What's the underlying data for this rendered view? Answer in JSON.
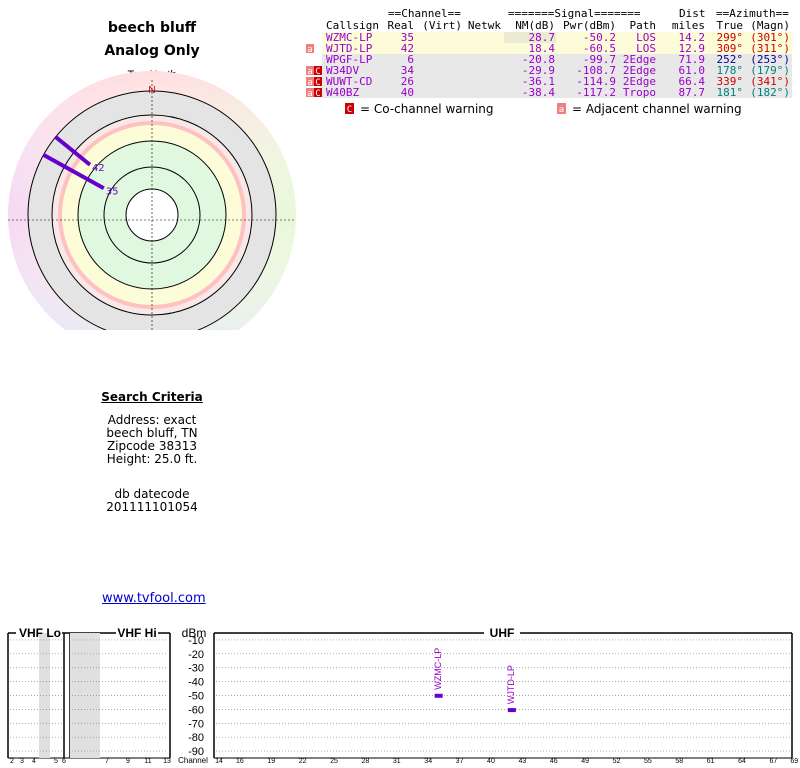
{
  "header": {
    "title": "beech bluff",
    "subtitle": "Analog Only"
  },
  "radar": {
    "true_north_label": "TrueNorth",
    "north_letter": "N"
  },
  "table": {
    "group_headers": {
      "channel": "==Channel==",
      "signal": "=======Signal=======",
      "dist": "Dist",
      "azimuth": "==Azimuth=="
    },
    "columns": [
      "Callsign",
      "Real",
      "(Virt)",
      "Netwk",
      "NM(dB)",
      "Pwr(dBm)",
      "Path",
      "miles",
      "True",
      "(Magn)"
    ],
    "rows": [
      {
        "warn": "",
        "callsign": "WZMC-LP",
        "real": "35",
        "virt": "",
        "netwk": "",
        "nm": "28.7",
        "pwr": "-50.2",
        "path": "LOS",
        "miles": "14.2",
        "true_az": "299°",
        "magn_az": "(301°)",
        "bg": "#fcfcd8",
        "color": "#9900cc"
      },
      {
        "warn": "a",
        "callsign": "WJTD-LP",
        "real": "42",
        "virt": "",
        "netwk": "",
        "nm": "18.4",
        "pwr": "-60.5",
        "path": "LOS",
        "miles": "12.9",
        "true_az": "309°",
        "magn_az": "(311°)",
        "bg": "#fcfcd8",
        "color": "#9900cc"
      },
      {
        "warn": "",
        "callsign": "WPGF-LP",
        "real": "6",
        "virt": "",
        "netwk": "",
        "nm": "-20.8",
        "pwr": "-99.7",
        "path": "2Edge",
        "miles": "71.9",
        "true_az": "252°",
        "magn_az": "(253°)",
        "bg": "#e8e8e8",
        "color": "#9900cc"
      },
      {
        "warn": "aC",
        "callsign": "W34DV",
        "real": "34",
        "virt": "",
        "netwk": "",
        "nm": "-29.9",
        "pwr": "-108.7",
        "path": "2Edge",
        "miles": "61.0",
        "true_az": "178°",
        "magn_az": "(179°)",
        "bg": "#e8e8e8",
        "color": "#9900cc"
      },
      {
        "warn": "aC",
        "callsign": "WUWT-CD",
        "real": "26",
        "virt": "",
        "netwk": "",
        "nm": "-36.1",
        "pwr": "-114.9",
        "path": "2Edge",
        "miles": "66.4",
        "true_az": "339°",
        "magn_az": "(341°)",
        "bg": "#e8e8e8",
        "color": "#9900cc"
      },
      {
        "warn": "aC",
        "callsign": "W40BZ",
        "real": "40",
        "virt": "",
        "netwk": "",
        "nm": "-38.4",
        "pwr": "-117.2",
        "path": "Tropo",
        "miles": "87.7",
        "true_az": "181°",
        "magn_az": "(182°)",
        "bg": "#e8e8e8",
        "color": "#9900cc"
      }
    ],
    "az_colors": [
      "#cc0000",
      "#cc0000",
      "#000099",
      "#008080",
      "#cc0000",
      "#008080"
    ],
    "legend_cochannel": "= Co-channel warning",
    "legend_adjacent": "= Adjacent channel warning",
    "cochannel_glyph": "C",
    "adjacent_glyph": "a"
  },
  "criteria": {
    "heading": "Search Criteria",
    "address": "Address: exact",
    "place": "beech bluff, TN",
    "zipcode": "Zipcode 38313",
    "height": "Height: 25.0 ft.",
    "db_label": "db datecode",
    "db_value": "201111101054"
  },
  "link": "www.tvfool.com",
  "chart_data": [
    {
      "type": "radar-polar",
      "series": [
        {
          "label": "42",
          "azimuth_true": 309,
          "nm_db": 18.4,
          "color": "#6600cc"
        },
        {
          "label": "35",
          "azimuth_true": 299,
          "nm_db": 28.7,
          "color": "#6600cc"
        }
      ]
    },
    {
      "type": "bar",
      "band_labels": {
        "vhf_lo": "VHF Lo",
        "vhf_hi": "VHF Hi",
        "uhf": "UHF",
        "dbm": "dBm",
        "channel": "Channel"
      },
      "ylim": [
        -95,
        -5
      ],
      "yticks": [
        -10,
        -20,
        -30,
        -40,
        -50,
        -60,
        -70,
        -80,
        -90
      ],
      "vhf_lo_ticks": [
        "2",
        "3",
        "4",
        "5"
      ],
      "vhf_hi_ticks": [
        "6",
        "7",
        "9",
        "11",
        "13"
      ],
      "uhf_ticks": [
        "14",
        "16",
        "19",
        "22",
        "25",
        "28",
        "31",
        "34",
        "37",
        "40",
        "43",
        "46",
        "49",
        "52",
        "55",
        "58",
        "61",
        "64",
        "67",
        "69"
      ],
      "stations": [
        {
          "callsign": "WZMC-LP",
          "channel": 35,
          "pwr_dbm": -50.2
        },
        {
          "callsign": "WJTD-LP",
          "channel": 42,
          "pwr_dbm": -60.5
        }
      ]
    }
  ]
}
